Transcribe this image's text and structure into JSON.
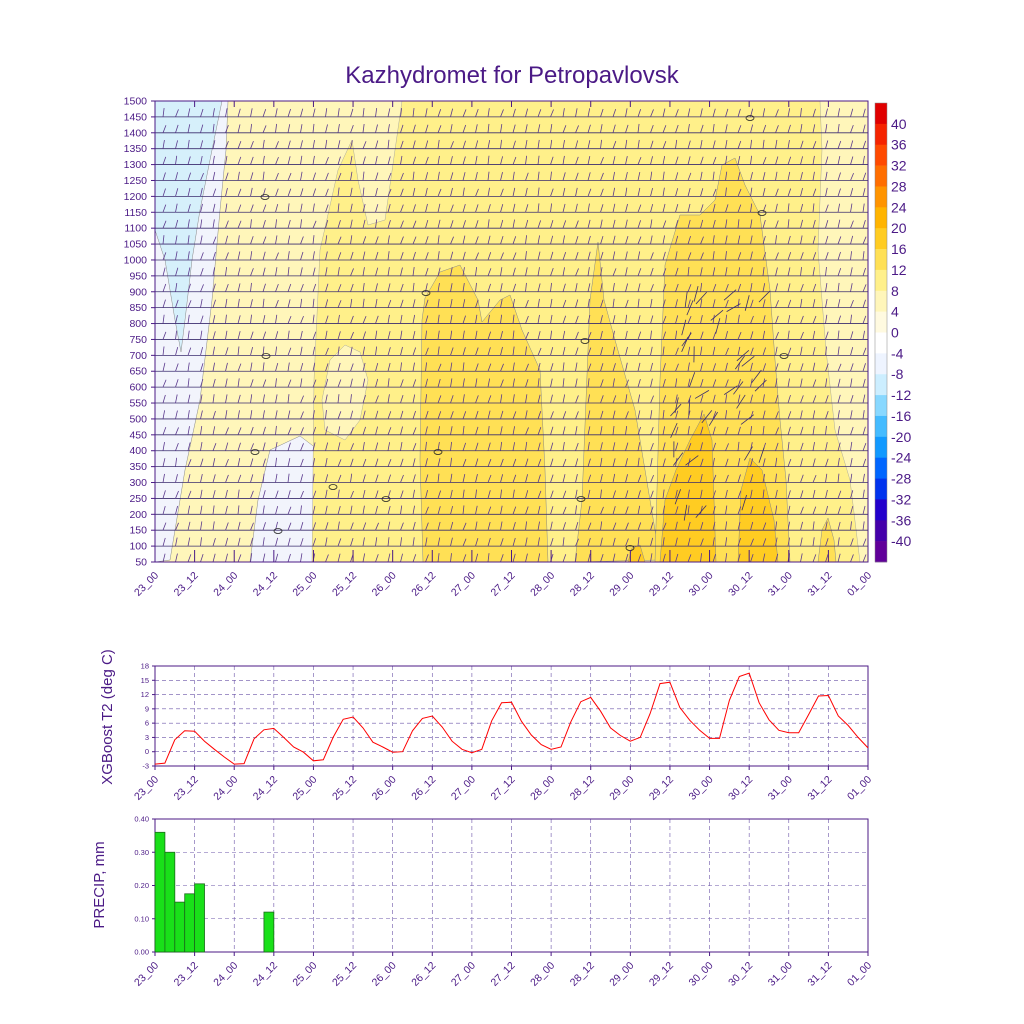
{
  "title": "Kazhydromet for Petropavlovsk",
  "colors": {
    "frame": "#4b1a86",
    "line": "#ff0000",
    "bar": "#19e019",
    "bar_stroke": "#1a6a1a"
  },
  "chart_data": [
    {
      "name": "cross-section",
      "type": "heatmap",
      "title": "Kazhydromet for Petropavlovsk",
      "x_ticks": [
        "23_00",
        "23_12",
        "24_00",
        "24_12",
        "25_00",
        "25_12",
        "26_00",
        "26_12",
        "27_00",
        "27_12",
        "28_00",
        "28_12",
        "29_00",
        "29_12",
        "30_00",
        "30_12",
        "31_00",
        "31_12",
        "01_00"
      ],
      "y_ticks": [
        50,
        100,
        150,
        200,
        250,
        300,
        350,
        400,
        450,
        500,
        550,
        600,
        650,
        700,
        750,
        800,
        850,
        900,
        950,
        1000,
        1050,
        1100,
        1150,
        1200,
        1250,
        1300,
        1350,
        1400,
        1450,
        1500
      ],
      "ylim": [
        50,
        1500
      ],
      "colorbar": {
        "labels": [
          40,
          36,
          32,
          28,
          24,
          20,
          16,
          12,
          8,
          4,
          0,
          -4,
          -8,
          -12,
          -16,
          -20,
          -24,
          -28,
          -32,
          -36,
          -40
        ],
        "colors": [
          "#e00000",
          "#f52400",
          "#ff4a00",
          "#ff6e00",
          "#ff9400",
          "#ffb400",
          "#ffcc22",
          "#ffe055",
          "#fff08a",
          "#fff6ba",
          "#fffae0",
          "#ffffff",
          "#eef4ff",
          "#cceeff",
          "#88d8ff",
          "#44bbff",
          "#1199ff",
          "#0066ff",
          "#0033ee",
          "#2200cc",
          "#4400aa",
          "#600099"
        ]
      },
      "wind_barbs": true
    },
    {
      "name": "t2",
      "type": "line",
      "ylabel": "XGBoost T2 (deg C)",
      "x_ticks": [
        "23_00",
        "23_12",
        "24_00",
        "24_12",
        "25_00",
        "25_12",
        "26_00",
        "26_12",
        "27_00",
        "27_12",
        "28_00",
        "28_12",
        "29_00",
        "29_12",
        "30_00",
        "30_12",
        "31_00",
        "31_12",
        "01_00"
      ],
      "y_ticks": [
        -3,
        0,
        3,
        6,
        9,
        12,
        15,
        18
      ],
      "ylim": [
        -3,
        18
      ],
      "x_hours": [
        0,
        3,
        6,
        9,
        12,
        15,
        18,
        21,
        24,
        27,
        30,
        33,
        36,
        39,
        42,
        45,
        48,
        51,
        54,
        57,
        60,
        63,
        66,
        69,
        72,
        75,
        78,
        81,
        84,
        87,
        90,
        93,
        96,
        99,
        102,
        105,
        108,
        111,
        114,
        117,
        120,
        123,
        126,
        129,
        132,
        135,
        138,
        141,
        144,
        147,
        150,
        153,
        156,
        159,
        162,
        165,
        168,
        171,
        174,
        177,
        180,
        183,
        186,
        189,
        192,
        195,
        198,
        201,
        204,
        207,
        210,
        213,
        216
      ],
      "values": [
        -2.6,
        -2.4,
        2.5,
        4.4,
        4.3,
        2.2,
        0.5,
        -1.1,
        -2.6,
        -2.5,
        2.7,
        4.6,
        4.9,
        3.0,
        1.0,
        -0.1,
        -1.9,
        -1.7,
        3.1,
        6.8,
        7.3,
        5.0,
        2.0,
        1.0,
        -0.1,
        0.0,
        4.4,
        7.0,
        7.5,
        5.2,
        2.2,
        0.5,
        -0.2,
        0.5,
        6.5,
        10.3,
        10.4,
        6.4,
        3.5,
        1.5,
        0.5,
        1.0,
        6.3,
        10.5,
        11.4,
        8.5,
        5.0,
        3.4,
        2.2,
        3.0,
        8.0,
        14.3,
        14.6,
        9.3,
        6.6,
        4.5,
        2.8,
        2.8,
        10.8,
        15.8,
        16.5,
        10.3,
        6.7,
        4.5,
        4.0,
        4.0,
        7.8,
        11.7,
        11.8,
        7.5,
        5.5,
        3.0,
        0.8
      ]
    },
    {
      "name": "precip",
      "type": "bar",
      "ylabel": "PRECIP, mm",
      "x_ticks": [
        "23_00",
        "23_12",
        "24_00",
        "24_12",
        "25_00",
        "25_12",
        "26_00",
        "26_12",
        "27_00",
        "27_12",
        "28_00",
        "28_12",
        "29_00",
        "29_12",
        "30_00",
        "30_12",
        "31_00",
        "31_12",
        "01_00"
      ],
      "y_ticks": [
        "0.00",
        "0.10",
        "0.20",
        "0.30",
        "0.40"
      ],
      "ylim": [
        0,
        0.4
      ],
      "x_hours": [
        3,
        6,
        9,
        12,
        15,
        36
      ],
      "values": [
        0.36,
        0.3,
        0.15,
        0.175,
        0.205,
        0.12
      ]
    }
  ]
}
